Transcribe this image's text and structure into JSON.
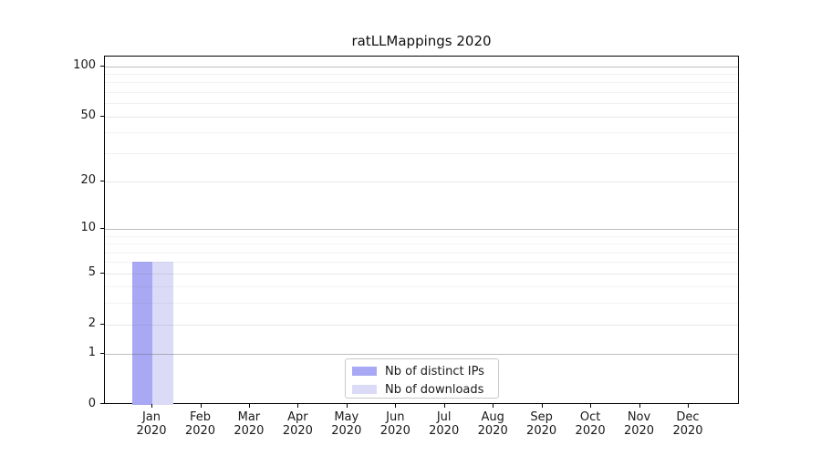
{
  "chart_data": {
    "type": "bar",
    "title": "ratLLMappings 2020",
    "categories": [
      "Jan 2020",
      "Feb 2020",
      "Mar 2020",
      "Apr 2020",
      "May 2020",
      "Jun 2020",
      "Jul 2020",
      "Aug 2020",
      "Sep 2020",
      "Oct 2020",
      "Nov 2020",
      "Dec 2020"
    ],
    "series": [
      {
        "name": "Nb of distinct IPs",
        "color": "#a8a8f4",
        "values": [
          6,
          0,
          0,
          0,
          0,
          0,
          0,
          0,
          0,
          0,
          0,
          0
        ]
      },
      {
        "name": "Nb of downloads",
        "color": "#dbdbf8",
        "values": [
          6,
          0,
          0,
          0,
          0,
          0,
          0,
          0,
          0,
          0,
          0,
          0
        ]
      }
    ],
    "xlabel": "",
    "ylabel": "",
    "yscale": "symlog",
    "ylim": [
      0,
      114
    ],
    "yticks": [
      0,
      1,
      2,
      5,
      10,
      20,
      50,
      100
    ],
    "yminor": [
      3,
      4,
      6,
      7,
      8,
      9,
      30,
      40,
      60,
      70,
      80,
      90
    ],
    "grid": true,
    "legend_position": "bottom-center-inside"
  },
  "legend": {
    "items": [
      {
        "label": "Nb of distinct IPs",
        "color": "#a8a8f4"
      },
      {
        "label": "Nb of downloads",
        "color": "#dbdbf8"
      }
    ]
  },
  "colors": {
    "axis": "#000000",
    "grid_major": "#c6c6c6",
    "grid_minor": "#efefef",
    "background": "#ffffff"
  }
}
